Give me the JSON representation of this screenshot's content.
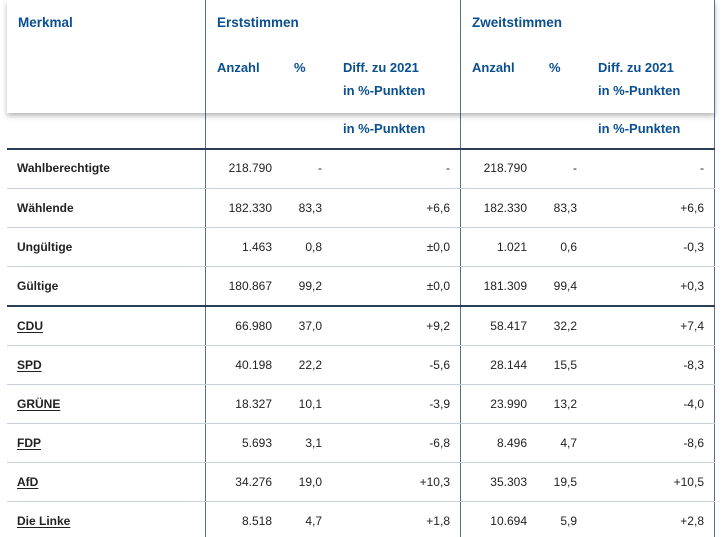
{
  "header": {
    "merkmal": "Merkmal",
    "erst": "Erststimmen",
    "zweit": "Zweitstimmen",
    "anzahl": "Anzahl",
    "percent": "%",
    "diff_line1": "Diff. zu 2021",
    "diff_line2": "in %-Punkten"
  },
  "subheader_diff": "in %-Punkten",
  "rows": [
    {
      "label": "Wahlberechtigte",
      "link": false,
      "erst_anzahl": "218.790",
      "erst_pct": "-",
      "erst_diff": "-",
      "zweit_anzahl": "218.790",
      "zweit_pct": "-",
      "zweit_diff": "-"
    },
    {
      "label": "Wählende",
      "link": false,
      "erst_anzahl": "182.330",
      "erst_pct": "83,3",
      "erst_diff": "+6,6",
      "zweit_anzahl": "182.330",
      "zweit_pct": "83,3",
      "zweit_diff": "+6,6"
    },
    {
      "label": "Ungültige",
      "link": false,
      "erst_anzahl": "1.463",
      "erst_pct": "0,8",
      "erst_diff": "±0,0",
      "zweit_anzahl": "1.021",
      "zweit_pct": "0,6",
      "zweit_diff": "-0,3"
    },
    {
      "label": "Gültige",
      "link": false,
      "erst_anzahl": "180.867",
      "erst_pct": "99,2",
      "erst_diff": "±0,0",
      "zweit_anzahl": "181.309",
      "zweit_pct": "99,4",
      "zweit_diff": "+0,3"
    },
    {
      "label": "CDU",
      "link": true,
      "erst_anzahl": "66.980",
      "erst_pct": "37,0",
      "erst_diff": "+9,2",
      "zweit_anzahl": "58.417",
      "zweit_pct": "32,2",
      "zweit_diff": "+7,4"
    },
    {
      "label": "SPD",
      "link": true,
      "erst_anzahl": "40.198",
      "erst_pct": "22,2",
      "erst_diff": "-5,6",
      "zweit_anzahl": "28.144",
      "zweit_pct": "15,5",
      "zweit_diff": "-8,3"
    },
    {
      "label": "GRÜNE",
      "link": true,
      "erst_anzahl": "18.327",
      "erst_pct": "10,1",
      "erst_diff": "-3,9",
      "zweit_anzahl": "23.990",
      "zweit_pct": "13,2",
      "zweit_diff": "-4,0"
    },
    {
      "label": "FDP",
      "link": true,
      "erst_anzahl": "5.693",
      "erst_pct": "3,1",
      "erst_diff": "-6,8",
      "zweit_anzahl": "8.496",
      "zweit_pct": "4,7",
      "zweit_diff": "-8,6"
    },
    {
      "label": "AfD",
      "link": true,
      "erst_anzahl": "34.276",
      "erst_pct": "19,0",
      "erst_diff": "+10,3",
      "zweit_anzahl": "35.303",
      "zweit_pct": "19,5",
      "zweit_diff": "+10,5"
    },
    {
      "label": "Die Linke",
      "link": true,
      "erst_anzahl": "8.518",
      "erst_pct": "4,7",
      "erst_diff": "+1,8",
      "zweit_anzahl": "10.694",
      "zweit_pct": "5,9",
      "zweit_diff": "+2,8"
    }
  ]
}
